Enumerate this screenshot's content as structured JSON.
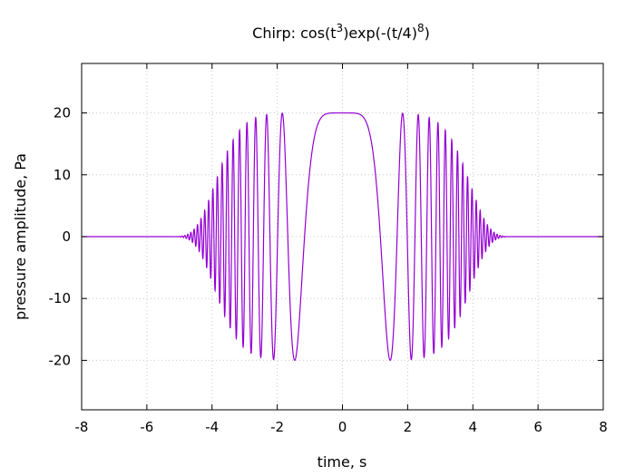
{
  "chart_data": {
    "type": "line",
    "title": "Chirp: cos(t³)exp(-(t/4)⁸)",
    "title_parts": {
      "prefix": "Chirp: cos(t",
      "sup1": "3",
      "middle": ")exp(-(t/4)",
      "sup2": "8",
      "suffix": ")"
    },
    "xlabel": "time, s",
    "ylabel": "pressure amplitude, Pa",
    "xlim": [
      -8,
      8
    ],
    "ylim": [
      -28,
      28
    ],
    "xticks": [
      -8,
      -6,
      -4,
      -2,
      0,
      2,
      4,
      6,
      8
    ],
    "yticks": [
      -20,
      -10,
      0,
      10,
      20
    ],
    "grid": true,
    "legend": "none",
    "line_color": "#9400d3",
    "series": [
      {
        "function": "20*cos(t^3)*exp(-(t/4)^8)",
        "x_range": [
          -8,
          8
        ],
        "samples": 6000
      }
    ]
  }
}
